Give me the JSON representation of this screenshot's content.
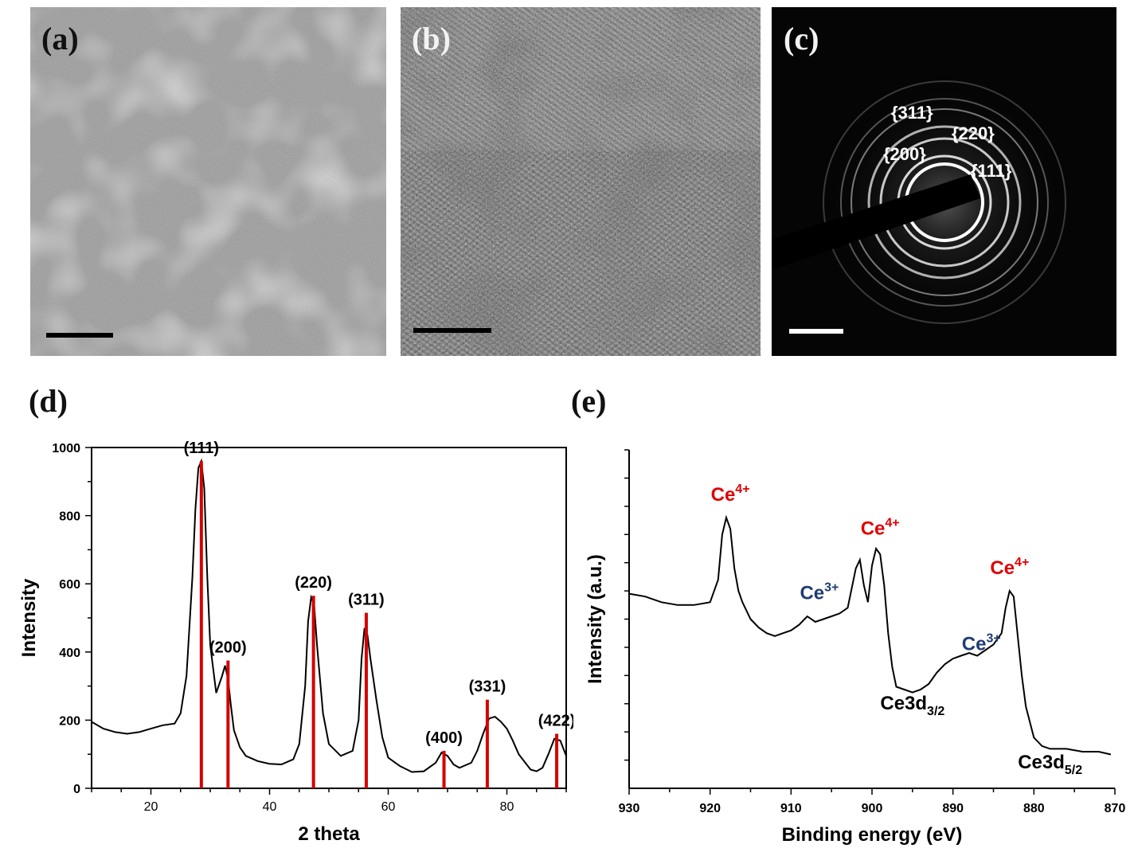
{
  "panels": {
    "a": {
      "label": "(a)"
    },
    "b": {
      "label": "(b)"
    },
    "c": {
      "label": "(c)",
      "ring_labels": [
        "{311}",
        "{220}",
        "{200}",
        "{111}"
      ]
    },
    "d": {
      "label": "(d)"
    },
    "e": {
      "label": "(e)"
    }
  },
  "chart_data": [
    {
      "panel": "d",
      "type": "line",
      "xlabel": "2 theta",
      "ylabel": "Intensity",
      "xlim": [
        10,
        90
      ],
      "ylim": [
        0,
        1000
      ],
      "xticks": [
        20,
        40,
        60,
        80
      ],
      "yticks": [
        0,
        200,
        400,
        600,
        800,
        1000
      ],
      "series": [
        {
          "x": [
            10,
            12,
            14,
            16,
            18,
            20,
            22,
            24,
            25,
            26,
            27,
            27.5,
            28,
            28.5,
            29,
            29.5,
            30,
            31,
            32,
            32.5,
            33,
            33.5,
            34,
            35,
            36,
            38,
            40,
            42,
            44,
            45,
            46,
            46.5,
            47,
            47.5,
            48,
            49,
            50,
            52,
            54,
            55,
            55.5,
            56,
            56.5,
            57,
            58,
            59,
            60,
            62,
            64,
            66,
            68,
            69,
            70,
            71,
            72,
            74,
            75,
            76,
            77,
            78,
            79,
            80,
            81,
            82,
            84,
            85,
            86,
            87,
            88,
            89,
            90
          ],
          "y": [
            195,
            175,
            165,
            160,
            165,
            175,
            185,
            190,
            220,
            330,
            620,
            820,
            940,
            960,
            880,
            620,
            420,
            280,
            330,
            360,
            320,
            240,
            170,
            120,
            95,
            80,
            72,
            70,
            85,
            130,
            300,
            490,
            560,
            540,
            420,
            220,
            130,
            95,
            110,
            200,
            380,
            470,
            450,
            380,
            260,
            150,
            90,
            65,
            48,
            50,
            75,
            105,
            95,
            70,
            60,
            75,
            110,
            160,
            205,
            210,
            195,
            175,
            140,
            100,
            55,
            50,
            60,
            100,
            145,
            140,
            95
          ]
        }
      ],
      "reference_lines": [
        {
          "x": 28.5,
          "height": 960,
          "label": "(111)"
        },
        {
          "x": 33.0,
          "height": 375,
          "label": "(200)"
        },
        {
          "x": 47.4,
          "height": 565,
          "label": "(220)"
        },
        {
          "x": 56.3,
          "height": 515,
          "label": "(311)"
        },
        {
          "x": 69.4,
          "height": 110,
          "label": "(400)"
        },
        {
          "x": 76.7,
          "height": 260,
          "label": "(331)"
        },
        {
          "x": 88.4,
          "height": 160,
          "label": "(422)"
        }
      ],
      "line_color": "#000000",
      "reference_color": "#d40000"
    },
    {
      "panel": "e",
      "type": "line",
      "xlabel": "Binding energy (eV)",
      "ylabel": "Intensity (a.u.)",
      "xlim": [
        930,
        870
      ],
      "ylim": [
        0,
        12
      ],
      "xticks": [
        930,
        920,
        910,
        900,
        890,
        880,
        870
      ],
      "series": [
        {
          "x": [
            930,
            928,
            926,
            924,
            922,
            920,
            919,
            918.5,
            918,
            917.5,
            917,
            916.5,
            916,
            915,
            914,
            913,
            912,
            911,
            910,
            909,
            908,
            907,
            906,
            905,
            904,
            903,
            902,
            901.5,
            901,
            900.5,
            900,
            899.5,
            899,
            898.5,
            898,
            897.5,
            897,
            896,
            895,
            894,
            893,
            892,
            891,
            890,
            889,
            888,
            887,
            886,
            885,
            884,
            883.5,
            883,
            882.5,
            882,
            881.5,
            881,
            880,
            879,
            878,
            876,
            874,
            872,
            870.5
          ],
          "y": [
            6.9,
            6.8,
            6.6,
            6.5,
            6.5,
            6.6,
            7.4,
            9.0,
            9.6,
            9.2,
            7.8,
            7.0,
            6.6,
            6.0,
            5.7,
            5.5,
            5.4,
            5.5,
            5.6,
            5.8,
            6.1,
            5.9,
            6.0,
            6.1,
            6.2,
            6.4,
            7.8,
            8.1,
            7.2,
            6.6,
            7.9,
            8.5,
            8.3,
            7.2,
            5.5,
            4.3,
            3.6,
            3.5,
            3.4,
            3.5,
            3.7,
            4.1,
            4.4,
            4.6,
            4.7,
            4.8,
            4.7,
            4.9,
            5.1,
            5.5,
            6.4,
            7.0,
            6.8,
            5.4,
            4.0,
            2.9,
            1.8,
            1.5,
            1.4,
            1.4,
            1.3,
            1.3,
            1.2
          ]
        }
      ],
      "annotations": [
        {
          "text": "Ce",
          "sup": "4+",
          "x": 917.5,
          "y": 10.2,
          "color": "#e00000"
        },
        {
          "text": "Ce",
          "sup": "3+",
          "x": 906.5,
          "y": 6.7,
          "color": "#1f3b73"
        },
        {
          "text": "Ce",
          "sup": "4+",
          "x": 899,
          "y": 9.0,
          "color": "#e00000"
        },
        {
          "text": "Ce",
          "sup": "3+",
          "x": 886.5,
          "y": 4.9,
          "color": "#1f3b73"
        },
        {
          "text": "Ce",
          "sup": "4+",
          "x": 883,
          "y": 7.6,
          "color": "#e00000"
        },
        {
          "text": "Ce3d",
          "sub": "3/2",
          "x": 895,
          "y": 2.8,
          "color": "#000000"
        },
        {
          "text": "Ce3d",
          "sub": "5/2",
          "x": 878,
          "y": 0.7,
          "color": "#000000"
        }
      ]
    }
  ]
}
